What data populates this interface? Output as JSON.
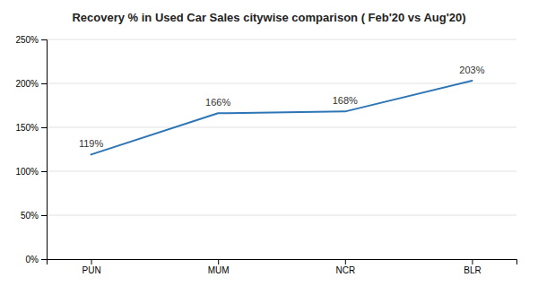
{
  "chart_data": {
    "type": "line",
    "title": "Recovery % in Used Car Sales citywise comparison ( Feb'20 vs Aug'20)",
    "categories": [
      "PUN",
      "MUM",
      "NCR",
      "BLR"
    ],
    "values": [
      119,
      166,
      168,
      203
    ],
    "value_labels": [
      "119%",
      "166%",
      "168%",
      "203%"
    ],
    "color": "#2E75B6",
    "ylim": [
      0,
      250
    ],
    "yticks": [
      {
        "value": 0,
        "label": "0%"
      },
      {
        "value": 50,
        "label": "50%"
      },
      {
        "value": 100,
        "label": "100%"
      },
      {
        "value": 150,
        "label": "150%"
      },
      {
        "value": 200,
        "label": "200%"
      },
      {
        "value": 250,
        "label": "250%"
      }
    ],
    "grid": true,
    "data_labels": true
  }
}
